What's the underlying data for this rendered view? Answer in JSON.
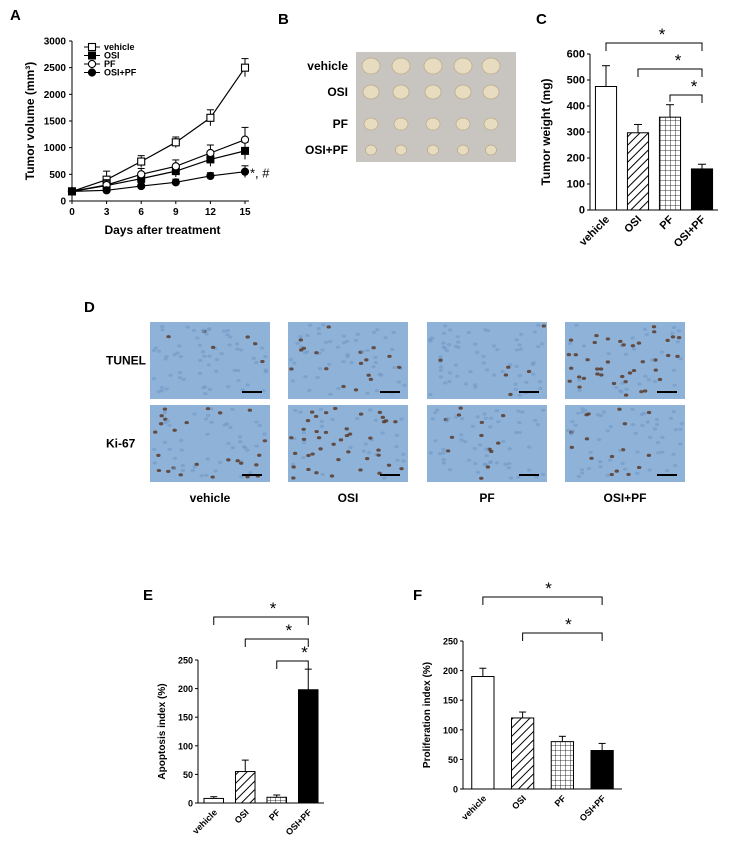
{
  "panels": {
    "A": "A",
    "B": "B",
    "C": "C",
    "D": "D",
    "E": "E",
    "F": "F"
  },
  "chart_data": [
    {
      "id": "A",
      "type": "line",
      "xlabel": "Days after treatment",
      "ylabel": "Tumor volume (mm³)",
      "x": [
        0,
        3,
        6,
        9,
        12,
        15
      ],
      "xlim": [
        0,
        15
      ],
      "ylim": [
        0,
        3000
      ],
      "yticks": [
        0,
        500,
        1000,
        1500,
        2000,
        2500,
        3000
      ],
      "legend_position": "top-left",
      "series": [
        {
          "name": "vehicle",
          "marker": "open-square",
          "values": [
            180,
            400,
            740,
            1100,
            1560,
            2500
          ],
          "errors": [
            40,
            160,
            110,
            100,
            150,
            170
          ]
        },
        {
          "name": "OSI",
          "marker": "filled-square",
          "values": [
            180,
            290,
            420,
            560,
            780,
            940
          ],
          "errors": [
            30,
            90,
            90,
            110,
            130,
            160
          ]
        },
        {
          "name": "PF",
          "marker": "open-circle",
          "values": [
            180,
            300,
            500,
            650,
            900,
            1150
          ],
          "errors": [
            30,
            100,
            110,
            120,
            150,
            230
          ]
        },
        {
          "name": "OSI+PF",
          "marker": "filled-circle",
          "values": [
            180,
            200,
            280,
            350,
            470,
            550
          ],
          "errors": [
            30,
            60,
            60,
            60,
            60,
            110
          ]
        }
      ],
      "annotation": "*, #"
    },
    {
      "id": "C",
      "type": "bar",
      "ylabel": "Tumor weight (mg)",
      "categories": [
        "vehicle",
        "OSI",
        "PF",
        "OSI+PF"
      ],
      "values": [
        475,
        297,
        357,
        158
      ],
      "errors": [
        80,
        32,
        48,
        18
      ],
      "fills": [
        "white",
        "hatch",
        "grid",
        "black"
      ],
      "ylim": [
        0,
        600
      ],
      "yticks": [
        0,
        100,
        200,
        300,
        400,
        500,
        600
      ],
      "significance": [
        {
          "from": 0,
          "to": 3,
          "label": "*"
        },
        {
          "from": 1,
          "to": 3,
          "label": "*"
        },
        {
          "from": 2,
          "to": 3,
          "label": "*"
        }
      ]
    },
    {
      "id": "E",
      "type": "bar",
      "ylabel": "Apoptosis index (%)",
      "categories": [
        "vehicle",
        "OSI",
        "PF",
        "OSI+PF"
      ],
      "values": [
        8,
        55,
        10,
        198
      ],
      "errors": [
        3,
        20,
        4,
        36
      ],
      "fills": [
        "white",
        "hatch",
        "grid",
        "black"
      ],
      "ylim": [
        0,
        250
      ],
      "yticks": [
        0,
        50,
        100,
        150,
        200,
        250
      ],
      "significance": [
        {
          "from": 0,
          "to": 3,
          "label": "*"
        },
        {
          "from": 1,
          "to": 3,
          "label": "*"
        },
        {
          "from": 2,
          "to": 3,
          "label": "*"
        }
      ]
    },
    {
      "id": "F",
      "type": "bar",
      "ylabel": "Proliferation index (%)",
      "categories": [
        "vehicle",
        "OSI",
        "PF",
        "OSI+PF"
      ],
      "values": [
        190,
        120,
        80,
        65
      ],
      "errors": [
        14,
        10,
        9,
        12
      ],
      "fills": [
        "white",
        "hatch",
        "grid",
        "black"
      ],
      "ylim": [
        0,
        250
      ],
      "yticks": [
        0,
        50,
        100,
        150,
        200,
        250
      ],
      "significance": [
        {
          "from": 0,
          "to": 3,
          "label": "*"
        },
        {
          "from": 1,
          "to": 3,
          "label": "*"
        }
      ]
    }
  ],
  "panelB": {
    "rows": [
      "vehicle",
      "OSI",
      "PF",
      "OSI+PF"
    ],
    "columns": 5,
    "background": "#c8c5c0",
    "tumor_color": "#e8dcc0"
  },
  "panelD": {
    "rows": [
      "TUNEL",
      "Ki-67"
    ],
    "columns": [
      "vehicle",
      "OSI",
      "PF",
      "OSI+PF"
    ],
    "tissue_color": "#8fb3d8",
    "stain_color": "#5a3a2a"
  }
}
